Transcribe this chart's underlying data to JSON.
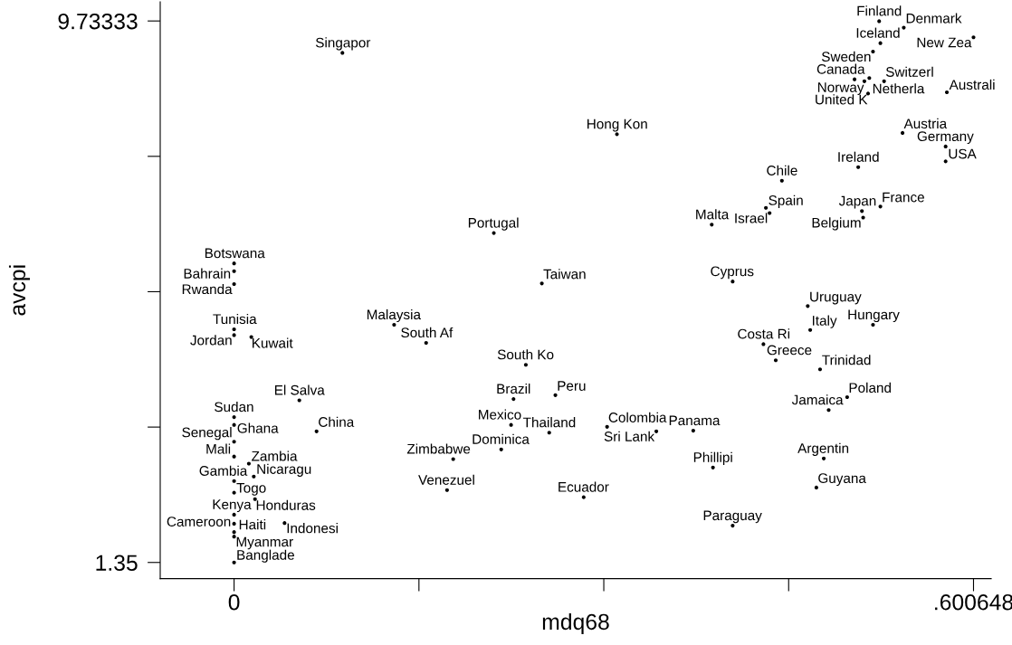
{
  "chart_data": {
    "type": "scatter",
    "xlabel": "mdq68",
    "ylabel": "avcpi",
    "marker": "circle",
    "color": "#000000",
    "x": [
      0.524,
      0.544,
      0.600648,
      0.525,
      0.519,
      0.088,
      0.504,
      0.516,
      0.512,
      0.528,
      0.515,
      0.579,
      0.311,
      0.543,
      0.578,
      0.578,
      0.507,
      0.445,
      0.525,
      0.432,
      0.51,
      0.435,
      0.511,
      0.388,
      0.211,
      0,
      0,
      0.405,
      0.25,
      0,
      0.466,
      0.13,
      0.519,
      0,
      0.468,
      0,
      0.014,
      0.156,
      0.43,
      0.44,
      0.237,
      0.476,
      0.261,
      0.498,
      0.227,
      0.053,
      0.483,
      0,
      0,
      0.225,
      0.303,
      0.373,
      0.343,
      0.067,
      0.256,
      0,
      0.217,
      0,
      0.479,
      0.178,
      0.012,
      0.389,
      0.016,
      0,
      0.473,
      0.173,
      0,
      0.284,
      0.017,
      0,
      0.041,
      0,
      0.405,
      0,
      0,
      0
    ],
    "values": [
      9.73,
      9.63,
      9.48,
      9.39,
      9.26,
      9.24,
      8.83,
      8.85,
      8.8,
      8.8,
      8.61,
      8.63,
      7.98,
      8.0,
      7.79,
      7.56,
      7.47,
      7.26,
      6.86,
      6.84,
      6.79,
      6.76,
      6.69,
      6.58,
      6.45,
      5.98,
      5.86,
      5.7,
      5.67,
      5.66,
      5.32,
      5.03,
      5.03,
      4.96,
      4.95,
      4.87,
      4.84,
      4.75,
      4.73,
      4.48,
      4.41,
      4.34,
      3.94,
      3.91,
      3.88,
      3.86,
      3.71,
      3.6,
      3.48,
      3.48,
      3.45,
      3.39,
      3.38,
      3.38,
      3.36,
      3.22,
      3.1,
      2.99,
      2.96,
      2.95,
      2.88,
      2.82,
      2.68,
      2.61,
      2.51,
      2.47,
      2.43,
      2.36,
      2.33,
      2.09,
      1.96,
      1.95,
      1.92,
      1.82,
      1.75,
      1.35
    ],
    "value_labels": [
      "Finland",
      "Denmark",
      "New Zea",
      "Iceland",
      "Sweden",
      "Singapor",
      "Canada",
      "Netherla",
      "Norway",
      "Switzerl",
      "United K",
      "Australi",
      "Hong Kon",
      "Austria",
      "Germany",
      "USA",
      "Ireland",
      "Chile",
      "France",
      "Spain",
      "Japan",
      "Israel",
      "Belgium",
      "Malta",
      "Portugal",
      "Botswana",
      "Bahrain",
      "Cyprus",
      "Taiwan",
      "Rwanda",
      "Uruguay",
      "Malaysia",
      "Hungary",
      "Tunisia",
      "Italy",
      "Jordan",
      "Kuwait",
      "South Af",
      "Costa Ri",
      "Greece",
      "South Ko",
      "Trinidad",
      "Peru",
      "Poland",
      "Brazil",
      "El Salva",
      "Jamaica",
      "Sudan",
      "Ghana",
      "Mexico",
      "Colombia",
      "Panama",
      "Sri Lank",
      "China",
      "Thailand",
      "Senegal",
      "Dominica",
      "Mali",
      "Argentin",
      "Zimbabwe",
      "Zambia",
      "Phillipi",
      "Nicaragu",
      "Gambia",
      "Guyana",
      "Venezuel",
      "Togo",
      "Ecuador",
      "Honduras",
      "Kenya",
      "Indonesi",
      "Cameroon",
      "Paraguay",
      "Haiti",
      "Myanmar",
      "Banglade"
    ],
    "xlim": [
      -0.06,
      0.615
    ],
    "ylim": [
      1.1,
      10.03
    ],
    "xticks": [
      0,
      {
        "value": 0.150162,
        "label": null
      },
      {
        "value": 0.300324,
        "label": null
      },
      {
        "value": 0.450486,
        "label": null
      },
      {
        "value": 0.600648,
        "label": ".600648"
      }
    ],
    "yticks": [
      1.35,
      {
        "value": 3.44583,
        "label": null
      },
      {
        "value": 5.54167,
        "label": null
      },
      {
        "value": 7.6375,
        "label": null
      },
      9.73333
    ]
  }
}
